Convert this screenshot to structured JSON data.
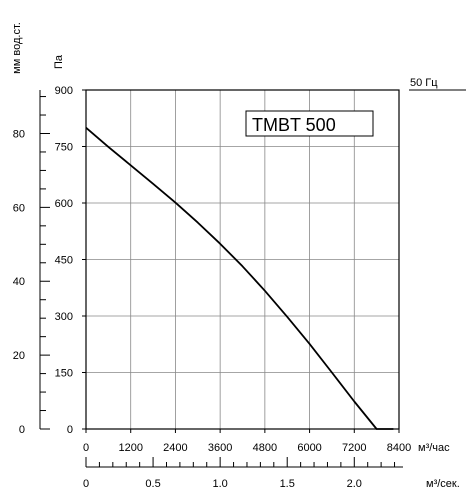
{
  "chart_data": {
    "type": "line",
    "title": "TMBT 500",
    "frequency_label": "50 Гц",
    "y_left_label": "мм вод.ст.",
    "y_inner_label": "Па",
    "x_label": "м³/час",
    "x2_label": "м³/сек.",
    "y_pa_ticks": [
      "0",
      "150",
      "300",
      "450",
      "600",
      "750",
      "900"
    ],
    "y_mm_ticks": [
      "0",
      "20",
      "40",
      "60",
      "80"
    ],
    "x_ticks": [
      "0",
      "1200",
      "2400",
      "3600",
      "4800",
      "6000",
      "7200",
      "8400"
    ],
    "x2_ticks": [
      "0",
      "0.5",
      "1.0",
      "1.5",
      "2.0"
    ],
    "xlim": [
      0,
      8400
    ],
    "ylim": [
      0,
      900
    ],
    "series": [
      {
        "x": [
          0,
          600,
          1200,
          1800,
          2400,
          3000,
          3600,
          4200,
          4800,
          5400,
          6000,
          6600,
          7200,
          7800,
          8250
        ],
        "y": [
          800,
          749,
          700,
          651,
          601,
          548,
          492,
          432,
          367,
          298,
          226,
          150,
          73,
          -8,
          0
        ]
      }
    ],
    "grid": true
  }
}
